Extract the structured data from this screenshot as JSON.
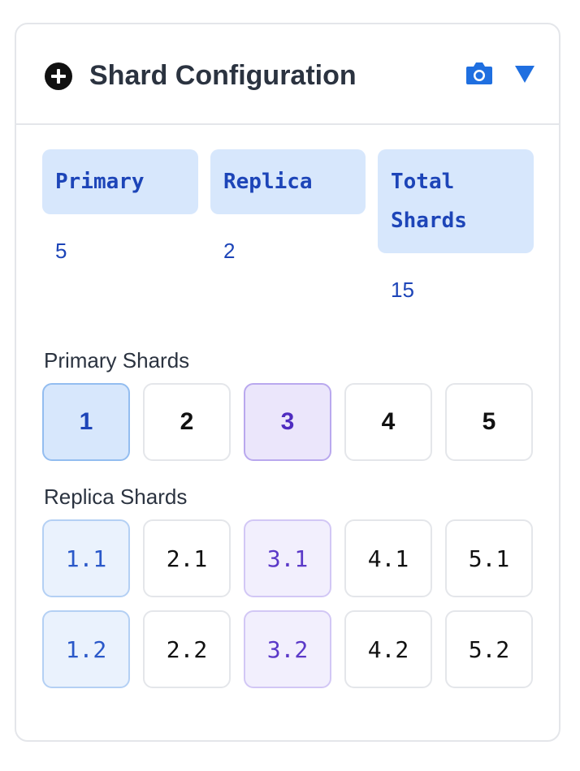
{
  "header": {
    "title": "Shard Configuration",
    "add_icon": "plus-circle-icon",
    "camera_icon": "camera-icon",
    "toggle_icon": "triangle-down-icon"
  },
  "stats": [
    {
      "label": "Primary",
      "value": "5"
    },
    {
      "label": "Replica",
      "value": "2"
    },
    {
      "label": "Total Shards",
      "value": "15"
    }
  ],
  "primary_section": {
    "label": "Primary Shards",
    "shards": [
      "1",
      "2",
      "3",
      "4",
      "5"
    ]
  },
  "replica_section": {
    "label": "Replica Shards",
    "rows": [
      [
        "1.1",
        "2.1",
        "3.1",
        "4.1",
        "5.1"
      ],
      [
        "1.2",
        "2.2",
        "3.2",
        "4.2",
        "5.2"
      ]
    ]
  },
  "colors": {
    "accent_blue": "#1d45b8",
    "highlight_blue_bg": "#d7e7fc",
    "highlight_purple_bg": "#ebe6fb",
    "icon_blue": "#1f6fe0"
  }
}
